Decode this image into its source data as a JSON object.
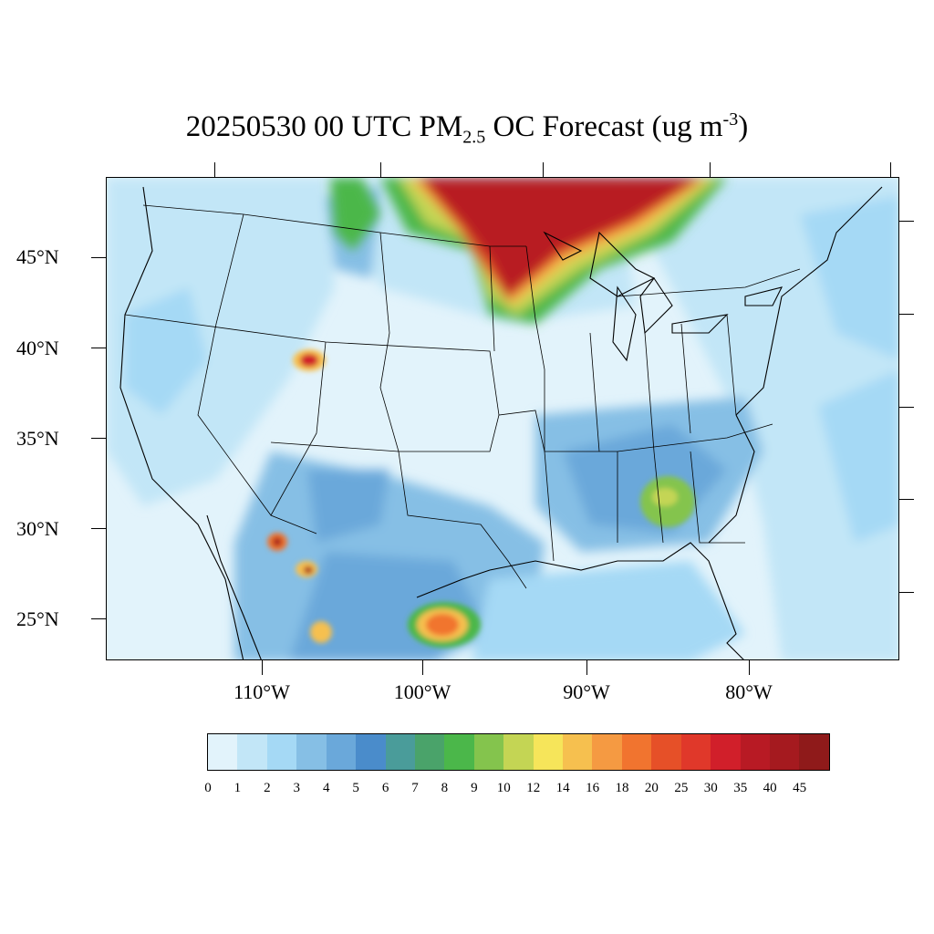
{
  "title": {
    "date_time": "20250530 00 UTC PM",
    "subscript": "2.5",
    "mid": " OC Forecast (ug m",
    "superscript": "-3",
    "end": ")"
  },
  "lat_labels": [
    "45°N",
    "40°N",
    "35°N",
    "30°N",
    "25°N"
  ],
  "lon_labels": [
    "110°W",
    "100°W",
    "90°W",
    "80°W"
  ],
  "colorbar": {
    "labels": [
      "0",
      "1",
      "2",
      "3",
      "4",
      "5",
      "6",
      "7",
      "8",
      "9",
      "10",
      "12",
      "14",
      "16",
      "18",
      "20",
      "25",
      "30",
      "35",
      "40",
      "45"
    ],
    "colors": [
      "#e2f3fb",
      "#c2e6f7",
      "#a5d9f5",
      "#86bfe5",
      "#6aa8da",
      "#4a8ccb",
      "#4a9c9a",
      "#4aa36a",
      "#4bb74a",
      "#84c44d",
      "#c4d554",
      "#f6e55a",
      "#f6c04f",
      "#f59a42",
      "#f1742f",
      "#e65028",
      "#e0382a",
      "#d11f2a",
      "#b81a24",
      "#a51a1f",
      "#8f1a1a"
    ]
  }
}
